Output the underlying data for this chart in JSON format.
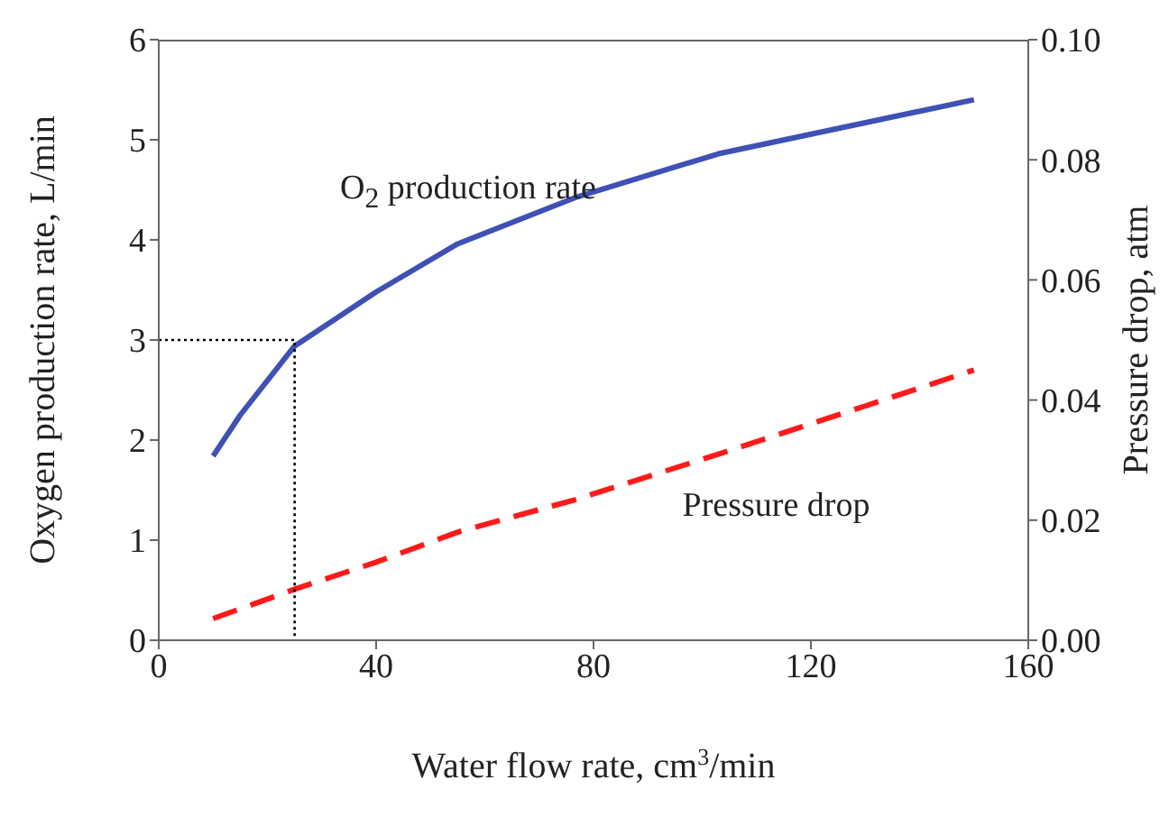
{
  "chart_data": {
    "type": "line",
    "xlabel": "Water flow rate, cm$^{3}$/min",
    "ylabel": "Oxygen production rate, L/min",
    "y2label": "Pressure drop, atm",
    "xlim": [
      0,
      160
    ],
    "xticks": [
      0,
      40,
      80,
      120,
      160
    ],
    "ylim": [
      0,
      6
    ],
    "yticks": [
      0,
      1,
      2,
      3,
      4,
      5,
      6
    ],
    "y2lim": [
      0,
      0.1
    ],
    "y2ticks": [
      {
        "value": 0,
        "label": "0.00"
      },
      {
        "value": 0.02,
        "label": "0.02"
      },
      {
        "value": 0.04,
        "label": "0.04"
      },
      {
        "value": 0.06,
        "label": "0.06"
      },
      {
        "value": 0.08,
        "label": "0.08"
      },
      {
        "value": 0.1,
        "label": "0.10"
      }
    ],
    "legend": false,
    "series": [
      {
        "name": "O$_{2}$ production rate",
        "color": "#3f51b5",
        "line_style": "solid",
        "x": [
          10,
          15,
          25,
          40,
          55,
          77,
          103,
          150
        ],
        "values": [
          1.84,
          2.25,
          2.94,
          3.48,
          3.96,
          4.43,
          4.86,
          5.4
        ]
      },
      {
        "name": "Pressure drop",
        "color": "#ff1a1a",
        "line_style": "dashed",
        "axis": "y2",
        "x": [
          10,
          25,
          40,
          55,
          77,
          103,
          130,
          150
        ],
        "values": [
          0.0036,
          0.0085,
          0.013,
          0.018,
          0.0235,
          0.031,
          0.039,
          0.045
        ]
      },
      {
        "color": "#000000",
        "line_style": "dotted",
        "x": [
          0,
          25,
          25
        ],
        "values": [
          3,
          3,
          0
        ]
      }
    ]
  }
}
